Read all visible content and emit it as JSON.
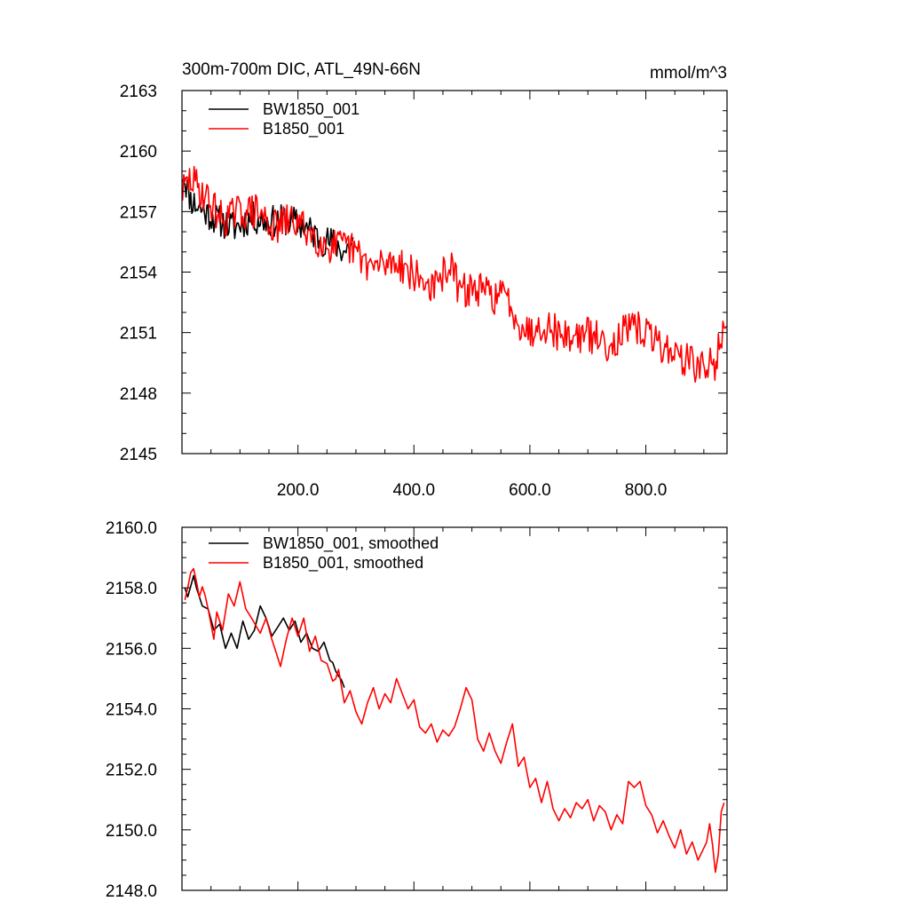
{
  "chart_data": [
    {
      "type": "line",
      "title": "300m-700m DIC, ATL_49N-66N",
      "units_label": "mmol/m^3",
      "xlabel": "",
      "ylabel": "",
      "xlim": [
        0,
        940
      ],
      "ylim": [
        2145,
        2163
      ],
      "x_ticks": [
        200,
        400,
        600,
        800
      ],
      "x_tick_labels": [
        "200.0",
        "400.0",
        "600.0",
        "800.0"
      ],
      "x_minor_step": 50,
      "y_ticks": [
        2145,
        2148,
        2151,
        2154,
        2157,
        2160,
        2163
      ],
      "y_tick_labels": [
        "2145",
        "2148",
        "2151",
        "2154",
        "2157",
        "2160",
        "2163"
      ],
      "y_minor_step": 1,
      "legend_position": "top-left",
      "series": [
        {
          "name": "BW1850_001",
          "color": "#000000",
          "x_start": 1,
          "x_end": 295,
          "step": 2,
          "anchors_x": [
            1,
            15,
            30,
            60,
            90,
            120,
            150,
            180,
            210,
            240,
            265,
            280,
            295
          ],
          "anchors_y": [
            2159.0,
            2157.6,
            2157.2,
            2156.6,
            2156.2,
            2156.7,
            2156.5,
            2156.6,
            2156.3,
            2155.6,
            2155.4,
            2155.0,
            2155.5
          ],
          "noise_amplitude": 0.8,
          "seed": 11
        },
        {
          "name": "B1850_001",
          "color": "#ff0000",
          "x_start": 1,
          "x_end": 940,
          "step": 2,
          "anchors_x": [
            1,
            15,
            40,
            70,
            100,
            130,
            160,
            190,
            220,
            250,
            290,
            330,
            370,
            410,
            440,
            460,
            480,
            500,
            540,
            560,
            580,
            600,
            620,
            660,
            700,
            740,
            760,
            790,
            820,
            860,
            900,
            920,
            930,
            940
          ],
          "anchors_y": [
            2158.0,
            2158.6,
            2157.8,
            2156.6,
            2157.0,
            2157.0,
            2156.2,
            2156.6,
            2156.0,
            2155.3,
            2155.2,
            2154.2,
            2154.6,
            2153.6,
            2153.2,
            2154.5,
            2153.0,
            2153.2,
            2152.8,
            2152.8,
            2151.6,
            2151.0,
            2151.5,
            2150.8,
            2150.9,
            2150.4,
            2151.0,
            2151.2,
            2150.5,
            2149.8,
            2149.2,
            2149.5,
            2151.0,
            2150.6
          ],
          "noise_amplitude": 0.9,
          "seed": 29
        }
      ]
    },
    {
      "type": "line",
      "title": "",
      "xlabel": "",
      "ylabel": "",
      "xlim": [
        0,
        940
      ],
      "ylim": [
        2148,
        2160
      ],
      "x_ticks": [
        200,
        400,
        600,
        800
      ],
      "x_tick_labels": [
        "",
        "",
        "",
        ""
      ],
      "x_minor_step": 50,
      "y_ticks": [
        2148,
        2150,
        2152,
        2154,
        2156,
        2158,
        2160
      ],
      "y_tick_labels": [
        "2148.0",
        "2150.0",
        "2152.0",
        "2154.0",
        "2156.0",
        "2158.0",
        "2160.0"
      ],
      "y_minor_step": 0.5,
      "legend_position": "top-left",
      "series": [
        {
          "name": "BW1850_001, smoothed",
          "color": "#000000",
          "x_start": 5,
          "x_end": 280,
          "step": 5,
          "anchors_x": [
            5,
            10,
            20,
            25,
            35,
            45,
            55,
            65,
            75,
            85,
            95,
            105,
            115,
            125,
            135,
            145,
            155,
            165,
            175,
            185,
            195,
            205,
            215,
            225,
            235,
            245,
            255,
            262,
            268,
            273,
            278,
            280
          ],
          "anchors_y": [
            2158.0,
            2157.7,
            2158.4,
            2158.0,
            2157.4,
            2157.3,
            2156.6,
            2156.8,
            2156.0,
            2156.5,
            2156.0,
            2156.9,
            2156.3,
            2156.6,
            2157.4,
            2157.0,
            2156.4,
            2156.7,
            2157.0,
            2156.6,
            2156.9,
            2156.2,
            2156.5,
            2156.0,
            2155.9,
            2156.2,
            2155.6,
            2155.5,
            2155.0,
            2155.2,
            2154.6,
            2154.7
          ],
          "noise_amplitude": 0,
          "seed": 3
        },
        {
          "name": "B1850_001, smoothed",
          "color": "#ff0000",
          "x_start": 5,
          "x_end": 935,
          "step": 5,
          "anchors_x": [
            5,
            10,
            18,
            24,
            30,
            36,
            45,
            55,
            60,
            70,
            80,
            90,
            100,
            110,
            120,
            135,
            145,
            155,
            170,
            180,
            190,
            200,
            210,
            220,
            230,
            240,
            250,
            262,
            270,
            280,
            290,
            300,
            310,
            320,
            330,
            340,
            350,
            360,
            370,
            380,
            390,
            400,
            410,
            420,
            430,
            440,
            450,
            460,
            470,
            480,
            490,
            500,
            510,
            520,
            530,
            540,
            550,
            560,
            570,
            580,
            590,
            600,
            610,
            620,
            630,
            640,
            650,
            660,
            670,
            680,
            690,
            700,
            710,
            720,
            730,
            740,
            750,
            760,
            770,
            780,
            790,
            800,
            810,
            820,
            830,
            840,
            850,
            860,
            870,
            880,
            890,
            900,
            905,
            910,
            915,
            920,
            925,
            930,
            935
          ],
          "anchors_y": [
            2157.6,
            2158.0,
            2158.8,
            2158.3,
            2157.7,
            2158.1,
            2157.3,
            2156.3,
            2157.2,
            2156.6,
            2157.8,
            2157.4,
            2158.2,
            2157.3,
            2157.0,
            2156.5,
            2157.0,
            2156.3,
            2155.4,
            2156.3,
            2157.0,
            2156.4,
            2157.0,
            2155.9,
            2156.4,
            2155.6,
            2155.5,
            2154.8,
            2155.3,
            2154.2,
            2154.6,
            2153.9,
            2153.5,
            2154.2,
            2154.7,
            2154.0,
            2154.5,
            2154.2,
            2155.0,
            2154.5,
            2154.0,
            2154.3,
            2153.4,
            2153.2,
            2153.5,
            2152.9,
            2153.3,
            2153.1,
            2153.4,
            2154.0,
            2154.7,
            2154.3,
            2153.0,
            2152.6,
            2153.2,
            2152.6,
            2152.2,
            2152.9,
            2153.5,
            2152.1,
            2152.4,
            2151.4,
            2151.7,
            2150.9,
            2151.6,
            2150.7,
            2150.3,
            2150.7,
            2150.4,
            2150.9,
            2150.7,
            2151.0,
            2150.3,
            2150.8,
            2150.6,
            2150.0,
            2150.5,
            2150.2,
            2151.6,
            2151.4,
            2151.6,
            2150.8,
            2150.5,
            2149.9,
            2150.3,
            2149.8,
            2149.4,
            2150.0,
            2149.2,
            2149.6,
            2149.0,
            2149.4,
            2149.6,
            2150.2,
            2149.5,
            2148.6,
            2149.2,
            2150.6,
            2150.9
          ]
        }
      ]
    }
  ]
}
